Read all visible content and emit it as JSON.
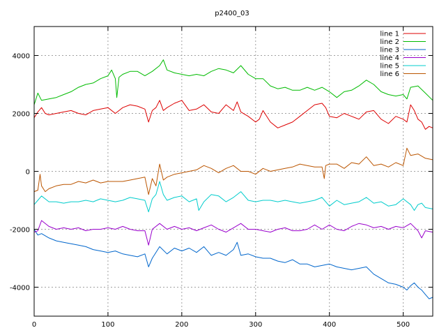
{
  "chart_data": {
    "type": "line",
    "title": "p2400_03",
    "xlabel": "",
    "ylabel": "",
    "xlim": [
      0,
      540
    ],
    "ylim": [
      -5000,
      5000
    ],
    "xticks": [
      0,
      100,
      200,
      300,
      400,
      500
    ],
    "yticks": [
      -4000,
      -2000,
      0,
      2000,
      4000
    ],
    "grid": true,
    "legend_position": "top-right",
    "series": [
      {
        "name": "line 1",
        "color": "#dd0000",
        "x": [
          0,
          5,
          10,
          15,
          20,
          30,
          40,
          50,
          60,
          70,
          80,
          90,
          100,
          110,
          115,
          120,
          130,
          140,
          150,
          155,
          160,
          165,
          170,
          175,
          180,
          190,
          200,
          210,
          220,
          230,
          240,
          250,
          260,
          270,
          275,
          280,
          290,
          300,
          305,
          310,
          320,
          330,
          340,
          350,
          360,
          370,
          380,
          390,
          395,
          400,
          410,
          420,
          430,
          440,
          450,
          460,
          470,
          480,
          490,
          500,
          505,
          510,
          515,
          520,
          525,
          530,
          535,
          540
        ],
        "y": [
          1850,
          2050,
          2200,
          2000,
          1950,
          2000,
          2050,
          2100,
          2000,
          1950,
          2100,
          2150,
          2200,
          2000,
          2100,
          2200,
          2300,
          2250,
          2150,
          1700,
          2100,
          2200,
          2450,
          2100,
          2200,
          2350,
          2450,
          2100,
          2150,
          2300,
          2050,
          2000,
          2300,
          2100,
          2400,
          2050,
          1900,
          1700,
          1800,
          2100,
          1700,
          1500,
          1600,
          1700,
          1900,
          2100,
          2300,
          2350,
          2200,
          1900,
          1850,
          2000,
          1900,
          1800,
          2050,
          2100,
          1800,
          1650,
          1900,
          1800,
          1700,
          2300,
          2100,
          1800,
          1700,
          1450,
          1550,
          1500
        ]
      },
      {
        "name": "line 2",
        "color": "#00bb00",
        "x": [
          0,
          5,
          10,
          20,
          30,
          40,
          50,
          60,
          70,
          80,
          90,
          100,
          105,
          110,
          112,
          115,
          120,
          130,
          140,
          150,
          160,
          170,
          175,
          180,
          190,
          200,
          210,
          220,
          230,
          240,
          250,
          260,
          270,
          280,
          290,
          300,
          310,
          320,
          330,
          340,
          350,
          360,
          370,
          380,
          390,
          400,
          410,
          420,
          430,
          440,
          450,
          460,
          470,
          480,
          490,
          500,
          505,
          510,
          520,
          530,
          540
        ],
        "y": [
          2300,
          2700,
          2450,
          2500,
          2550,
          2650,
          2750,
          2900,
          3000,
          3050,
          3200,
          3300,
          3500,
          3200,
          2550,
          3250,
          3350,
          3450,
          3450,
          3300,
          3450,
          3650,
          3850,
          3500,
          3400,
          3350,
          3300,
          3350,
          3300,
          3450,
          3550,
          3500,
          3400,
          3650,
          3350,
          3200,
          3200,
          2950,
          2850,
          2900,
          2800,
          2800,
          2900,
          2800,
          2900,
          2750,
          2550,
          2750,
          2800,
          2950,
          3150,
          3000,
          2750,
          2650,
          2600,
          2650,
          2500,
          2900,
          2950,
          2700,
          2450
        ]
      },
      {
        "name": "line 3",
        "color": "#0066cc",
        "x": [
          0,
          5,
          10,
          20,
          30,
          40,
          50,
          60,
          70,
          80,
          90,
          100,
          110,
          120,
          130,
          140,
          150,
          155,
          160,
          170,
          180,
          190,
          200,
          210,
          220,
          230,
          240,
          250,
          260,
          270,
          275,
          280,
          290,
          300,
          310,
          320,
          330,
          340,
          350,
          360,
          370,
          380,
          390,
          400,
          410,
          420,
          430,
          440,
          450,
          460,
          470,
          480,
          490,
          500,
          505,
          510,
          515,
          520,
          525,
          530,
          535,
          540
        ],
        "y": [
          -2000,
          -2200,
          -2150,
          -2300,
          -2400,
          -2450,
          -2500,
          -2550,
          -2600,
          -2700,
          -2750,
          -2800,
          -2750,
          -2850,
          -2900,
          -2950,
          -2850,
          -3300,
          -3000,
          -2600,
          -2850,
          -2650,
          -2750,
          -2650,
          -2800,
          -2600,
          -2900,
          -2800,
          -2900,
          -2700,
          -2450,
          -2900,
          -2850,
          -2950,
          -3000,
          -3000,
          -3100,
          -3150,
          -3050,
          -3200,
          -3200,
          -3300,
          -3250,
          -3200,
          -3300,
          -3350,
          -3400,
          -3350,
          -3300,
          -3550,
          -3700,
          -3850,
          -3900,
          -4000,
          -4100,
          -3950,
          -3850,
          -4000,
          -4100,
          -4250,
          -4400,
          -4350
        ]
      },
      {
        "name": "line 4",
        "color": "#9900cc",
        "x": [
          0,
          5,
          10,
          20,
          30,
          40,
          50,
          60,
          70,
          80,
          90,
          100,
          110,
          120,
          130,
          140,
          150,
          155,
          160,
          170,
          180,
          190,
          200,
          210,
          220,
          230,
          240,
          250,
          260,
          270,
          280,
          290,
          300,
          310,
          320,
          330,
          340,
          350,
          360,
          370,
          380,
          390,
          400,
          410,
          420,
          430,
          440,
          450,
          460,
          470,
          480,
          490,
          500,
          510,
          520,
          525,
          530,
          540
        ],
        "y": [
          -2100,
          -2050,
          -1700,
          -1900,
          -2000,
          -1950,
          -2000,
          -1950,
          -2050,
          -2000,
          -2000,
          -1950,
          -2000,
          -1900,
          -2000,
          -2050,
          -2050,
          -2550,
          -2000,
          -1800,
          -2000,
          -1900,
          -2000,
          -1950,
          -2050,
          -1950,
          -1850,
          -2000,
          -2100,
          -1950,
          -1800,
          -2000,
          -2000,
          -2050,
          -2100,
          -2000,
          -1950,
          -2050,
          -2050,
          -2000,
          -1850,
          -2000,
          -1850,
          -2000,
          -2050,
          -1900,
          -1800,
          -1850,
          -1950,
          -1900,
          -2000,
          -1900,
          -1950,
          -1800,
          -2050,
          -2300,
          -2050,
          -2100
        ]
      },
      {
        "name": "line 5",
        "color": "#00cccc",
        "x": [
          0,
          5,
          10,
          20,
          30,
          40,
          50,
          60,
          70,
          80,
          90,
          100,
          110,
          120,
          130,
          140,
          150,
          155,
          160,
          165,
          170,
          175,
          180,
          190,
          200,
          210,
          220,
          223,
          230,
          240,
          250,
          260,
          270,
          280,
          290,
          300,
          310,
          320,
          330,
          340,
          350,
          360,
          370,
          380,
          390,
          400,
          410,
          420,
          430,
          440,
          450,
          460,
          470,
          480,
          490,
          500,
          510,
          515,
          520,
          525,
          530,
          540
        ],
        "y": [
          -1150,
          -1000,
          -850,
          -1050,
          -1050,
          -1100,
          -1050,
          -1050,
          -1000,
          -1050,
          -950,
          -1000,
          -1050,
          -1000,
          -900,
          -950,
          -1000,
          -1400,
          -950,
          -800,
          -350,
          -800,
          -1000,
          -900,
          -850,
          -1050,
          -950,
          -1350,
          -1050,
          -800,
          -850,
          -1050,
          -900,
          -700,
          -1000,
          -1050,
          -1000,
          -1000,
          -1050,
          -1000,
          -1050,
          -1100,
          -1050,
          -1000,
          -900,
          -1200,
          -1000,
          -1150,
          -1100,
          -1050,
          -900,
          -1100,
          -1050,
          -1200,
          -1150,
          -950,
          -1150,
          -1350,
          -1150,
          -1100,
          -1250,
          -1300
        ]
      },
      {
        "name": "line 6",
        "color": "#bb5500",
        "x": [
          0,
          5,
          8,
          10,
          15,
          20,
          30,
          40,
          50,
          60,
          70,
          80,
          90,
          100,
          110,
          120,
          130,
          140,
          150,
          155,
          160,
          165,
          170,
          175,
          180,
          190,
          200,
          210,
          220,
          230,
          240,
          250,
          260,
          270,
          280,
          290,
          300,
          310,
          320,
          330,
          340,
          350,
          360,
          370,
          380,
          390,
          393,
          395,
          400,
          410,
          420,
          430,
          440,
          450,
          460,
          470,
          480,
          490,
          500,
          505,
          510,
          520,
          530,
          540
        ],
        "y": [
          -700,
          -650,
          -100,
          -500,
          -700,
          -600,
          -500,
          -450,
          -450,
          -350,
          -400,
          -300,
          -400,
          -350,
          -350,
          -350,
          -300,
          -250,
          -200,
          -800,
          -250,
          -500,
          250,
          -300,
          -200,
          -100,
          -50,
          0,
          50,
          200,
          100,
          -50,
          100,
          200,
          0,
          0,
          -100,
          100,
          0,
          50,
          100,
          150,
          250,
          200,
          150,
          150,
          -250,
          200,
          250,
          250,
          100,
          300,
          250,
          500,
          200,
          250,
          150,
          300,
          200,
          800,
          550,
          600,
          450,
          400
        ]
      }
    ]
  }
}
